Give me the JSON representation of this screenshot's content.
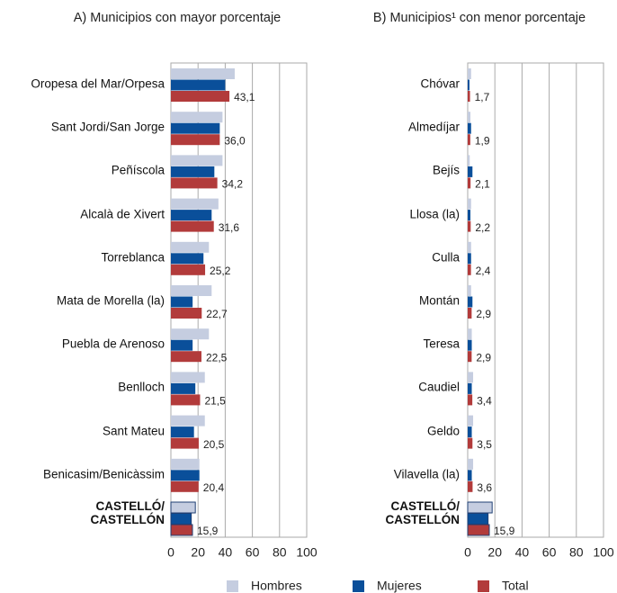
{
  "chart_data": [
    {
      "type": "hbar",
      "title": "A) Municipios con mayor porcentaje",
      "categories": [
        "Oropesa del Mar/Orpesa",
        "Sant Jordi/San Jorge",
        "Peñíscola",
        "Alcalà de Xivert",
        "Torreblanca",
        "Mata de Morella (la)",
        "Puebla de Arenoso",
        "Benlloch",
        "Sant Mateu",
        "Benicasim/Benicàssim",
        "CASTELLÓ/\nCASTELLÓN"
      ],
      "series": [
        {
          "name": "Hombres",
          "color": "#c5cde0",
          "values": [
            47,
            38,
            38,
            35,
            28,
            30,
            28,
            25,
            25,
            21,
            18
          ]
        },
        {
          "name": "Mujeres",
          "color": "#0a4f9a",
          "values": [
            40,
            36,
            32,
            30,
            24,
            16,
            16,
            18,
            17,
            21,
            15
          ]
        },
        {
          "name": "Total",
          "color": "#b23b3b",
          "values": [
            43.1,
            36.0,
            34.2,
            31.6,
            25.2,
            22.7,
            22.5,
            21.5,
            20.5,
            20.4,
            15.9
          ],
          "value_labels": [
            "43,1",
            "36,0",
            "34,2",
            "31,6",
            "25,2",
            "22,7",
            "22,5",
            "21,5",
            "20,5",
            "20,4",
            "15,9"
          ]
        }
      ],
      "xlim": [
        0,
        100
      ],
      "xticks": [
        0,
        20,
        40,
        60,
        80,
        100
      ],
      "grid": true
    },
    {
      "type": "hbar",
      "title": "B) Municipios¹ con menor porcentaje",
      "categories": [
        "Chóvar",
        "Almedíjar",
        "Bejís",
        "Llosa (la)",
        "Culla",
        "Montán",
        "Teresa",
        "Caudiel",
        "Geldo",
        "Vilavella (la)",
        "CASTELLÓ/\nCASTELLÓN"
      ],
      "series": [
        {
          "name": "Hombres",
          "color": "#c5cde0",
          "values": [
            2.5,
            2,
            1.5,
            2.5,
            2.5,
            2.5,
            3,
            4,
            4,
            4,
            18
          ]
        },
        {
          "name": "Mujeres",
          "color": "#0a4f9a",
          "values": [
            1.3,
            2.5,
            3.5,
            2,
            2.5,
            3.5,
            3,
            3,
            3,
            3,
            15
          ]
        },
        {
          "name": "Total",
          "color": "#b23b3b",
          "values": [
            1.7,
            1.9,
            2.1,
            2.2,
            2.4,
            2.9,
            2.9,
            3.4,
            3.5,
            3.6,
            15.9
          ],
          "value_labels": [
            "1,7",
            "1,9",
            "2,1",
            "2,2",
            "2,4",
            "2,9",
            "2,9",
            "3,4",
            "3,5",
            "3,6",
            "15,9"
          ]
        }
      ],
      "xlim": [
        0,
        100
      ],
      "xticks": [
        0,
        20,
        40,
        60,
        80,
        100
      ],
      "grid": true
    }
  ]
}
